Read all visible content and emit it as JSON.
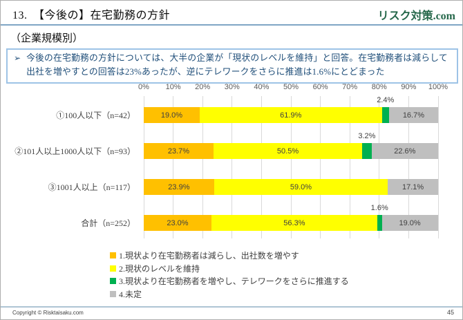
{
  "slide": {
    "title": "13.　【今後の】在宅勤務の方針",
    "logo": "リスク対策.com",
    "subtitle": "（企業規模別）",
    "message_bullet": "➢",
    "message": "今後の在宅勤務の方針については、大半の企業が「現状のレベルを維持」と回答。在宅勤務者は減らして出社を増やすとの回答は23%あったが、逆にテレワークをさらに推進は1.6%にとどまった",
    "footer_copyright": "Copyright © Risktaisaku.com",
    "page_number": "45"
  },
  "colors": {
    "header_line": "#7FA5C5",
    "logo_green": "#26684B",
    "message_border": "#9DC3E6",
    "message_text": "#1F4E79",
    "gridline": "#D9D9D9",
    "footer_line": "#AEC4D4"
  },
  "chart_data": {
    "type": "bar",
    "orientation": "horizontal-stacked",
    "title": "",
    "xlabel": "",
    "ylabel": "",
    "xlim": [
      0,
      100
    ],
    "grid": true,
    "legend_position": "bottom",
    "x_ticks": [
      "0%",
      "10%",
      "20%",
      "30%",
      "40%",
      "50%",
      "60%",
      "70%",
      "80%",
      "90%",
      "100%"
    ],
    "categories": [
      "①100人以下（n=42）",
      "②101人以上1000人以下（n=93）",
      "③1001人以上（n=117）",
      "合計（n=252）"
    ],
    "series": [
      {
        "name": "1.現状より在宅勤務者は減らし、出社数を増やす",
        "color": "#FFC000",
        "values": [
          19.0,
          23.7,
          23.9,
          23.0
        ],
        "labels": [
          "19.0%",
          "23.7%",
          "23.9%",
          "23.0%"
        ]
      },
      {
        "name": "2.現状のレベルを維持",
        "color": "#FFFF00",
        "values": [
          61.9,
          50.5,
          59.0,
          56.3
        ],
        "labels": [
          "61.9%",
          "50.5%",
          "59.0%",
          "56.3%"
        ]
      },
      {
        "name": "3.現状より在宅勤務者を増やし、テレワークをさらに推進する",
        "color": "#00B050",
        "values": [
          2.4,
          3.2,
          0,
          1.6
        ],
        "labels": [
          "2.4%",
          "3.2%",
          "",
          "1.6%"
        ]
      },
      {
        "name": "4.未定",
        "color": "#BFBFBF",
        "values": [
          16.7,
          22.6,
          17.1,
          19.0
        ],
        "labels": [
          "16.7%",
          "22.6%",
          "17.1%",
          "19.0%"
        ]
      }
    ]
  }
}
